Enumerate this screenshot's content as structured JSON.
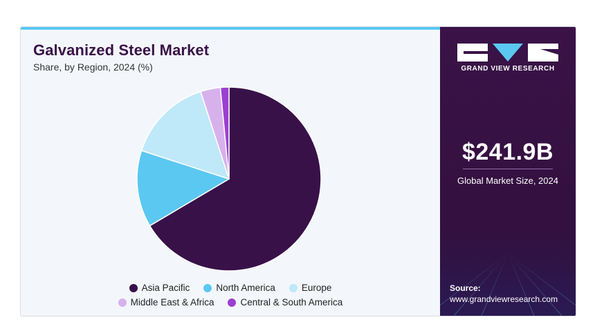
{
  "header": {
    "title": "Galvanized Steel Market",
    "subtitle": "Share, by Region, 2024 (%)"
  },
  "sidebar": {
    "brand": "GRAND VIEW RESEARCH",
    "logo_icon": "grand-view-research-logo",
    "market_size": "$241.9B",
    "market_size_label": "Global Market Size, 2024",
    "source_label": "Source:",
    "source_url": "www.grandviewresearch.com"
  },
  "colors": {
    "accent": "#5bc8f2",
    "brand": "#3a1248"
  },
  "chart_data": {
    "type": "pie",
    "title": "Galvanized Steel Market",
    "subtitle": "Share, by Region, 2024 (%)",
    "categories": [
      "Asia Pacific",
      "North America",
      "Europe",
      "Middle East & Africa",
      "Central & South America"
    ],
    "values": [
      66.5,
      13.5,
      15.0,
      3.5,
      1.5
    ],
    "colors": [
      "#381149",
      "#5bc8f2",
      "#bfe8f8",
      "#d7b1ec",
      "#9b3fd1"
    ],
    "legend_placement": "bottom"
  }
}
